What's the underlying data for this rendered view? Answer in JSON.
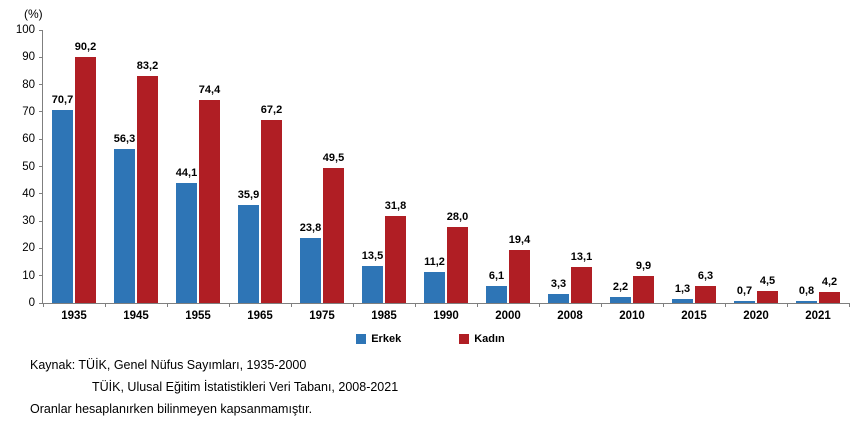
{
  "chart_data": {
    "type": "bar",
    "title": "",
    "xlabel": "",
    "ylabel": "(%)",
    "ylim": [
      0,
      100
    ],
    "ytick_step": 10,
    "grid": false,
    "legend_position": "bottom",
    "categories": [
      "1935",
      "1945",
      "1955",
      "1965",
      "1975",
      "1985",
      "1990",
      "2000",
      "2008",
      "2010",
      "2015",
      "2020",
      "2021"
    ],
    "series": [
      {
        "name": "Erkek",
        "color": "#2e75b6",
        "values": [
          70.7,
          56.3,
          44.1,
          35.9,
          23.8,
          13.5,
          11.2,
          6.1,
          3.3,
          2.2,
          1.3,
          0.7,
          0.8
        ],
        "labels": [
          "70,7",
          "56,3",
          "44,1",
          "35,9",
          "23,8",
          "13,5",
          "11,2",
          "6,1",
          "3,3",
          "2,2",
          "1,3",
          "0,7",
          "0,8"
        ]
      },
      {
        "name": "Kadın",
        "color": "#b01e24",
        "values": [
          90.2,
          83.2,
          74.4,
          67.2,
          49.5,
          31.8,
          28.0,
          19.4,
          13.1,
          9.9,
          6.3,
          4.5,
          4.2
        ],
        "labels": [
          "90,2",
          "83,2",
          "74,4",
          "67,2",
          "49,5",
          "31,8",
          "28,0",
          "19,4",
          "13,1",
          "9,9",
          "6,3",
          "4,5",
          "4,2"
        ]
      }
    ]
  },
  "footnotes": {
    "line1": "Kaynak: TÜİK, Genel Nüfus Sayımları, 1935-2000",
    "line2": "TÜİK, Ulusal Eğitim İstatistikleri Veri Tabanı, 2008-2021",
    "line3": "Oranlar hesaplanırken bilinmeyen kapsanmamıştır."
  }
}
